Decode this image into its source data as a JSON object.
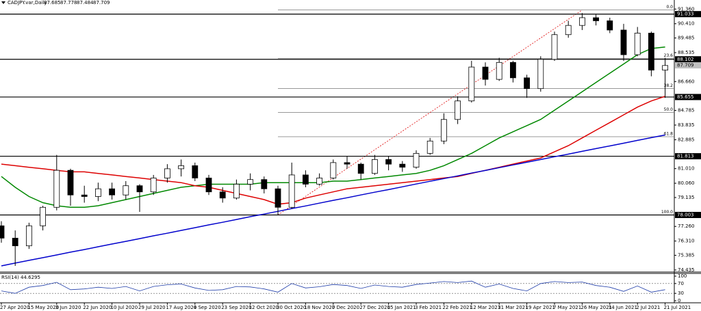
{
  "header": {
    "symbol": "CADJPY.var,Daily",
    "open": 87.685,
    "high": 87.778,
    "low": 87.484,
    "close": 87.709
  },
  "chart_data": [
    {
      "type": "candlestick",
      "categories": [
        "27 Apr 2020",
        null,
        "15 May 2020",
        null,
        "3 Jun 2020",
        null,
        "22 Jun 2020",
        null,
        "10 Jul 2020",
        null,
        "29 Jul 2020",
        null,
        "17 Aug 2020",
        null,
        "4 Sep 2020",
        null,
        "23 Sep 2020",
        null,
        "12 Oct 2020",
        null,
        "30 Oct 2020",
        null,
        "18 Nov 2020",
        null,
        "7 Dec 2020",
        null,
        "27 Dec 2020",
        null,
        "15 Jan 2021",
        null,
        "3 Feb 2021",
        null,
        "22 Feb 2021",
        null,
        "12 Mar 2021",
        null,
        "31 Mar 2021",
        null,
        "19 Apr 2021",
        null,
        "7 May 2021",
        null,
        "26 May 2021",
        null,
        "14 Jun 2021",
        null,
        "2 Jul 2021",
        null,
        "21 Jul 2021"
      ],
      "open": [
        77.3,
        76.5,
        76.0,
        77.3,
        78.5,
        80.9,
        79.3,
        79.2,
        79.7,
        79.3,
        79.9,
        79.5,
        80.4,
        81.0,
        81.2,
        80.4,
        79.5,
        79.1,
        80.0,
        80.3,
        79.7,
        78.5,
        80.6,
        80.0,
        80.4,
        81.4,
        81.3,
        80.7,
        81.6,
        81.3,
        81.1,
        82.0,
        82.8,
        84.2,
        85.4,
        87.6,
        86.8,
        87.9,
        86.9,
        86.2,
        88.1,
        89.7,
        90.3,
        90.8,
        90.6,
        90.0,
        88.4,
        89.8,
        87.4
      ],
      "high": [
        77.6,
        77.0,
        77.5,
        78.6,
        81.9,
        81.0,
        79.9,
        80.1,
        80.1,
        80.2,
        80.0,
        80.6,
        81.3,
        81.6,
        81.4,
        80.6,
        79.8,
        80.3,
        80.7,
        80.5,
        79.9,
        81.4,
        80.9,
        80.7,
        81.6,
        81.8,
        81.4,
        81.9,
        81.8,
        81.5,
        82.2,
        83.0,
        84.6,
        85.7,
        88.0,
        87.9,
        88.2,
        88.0,
        87.1,
        88.3,
        89.9,
        90.6,
        91.1,
        91.0,
        90.8,
        90.4,
        90.2,
        89.9,
        88.2
      ],
      "low": [
        76.2,
        74.7,
        75.8,
        77.0,
        78.3,
        78.6,
        78.8,
        78.9,
        79.0,
        79.0,
        78.2,
        79.3,
        80.1,
        80.5,
        80.2,
        79.3,
        78.8,
        79.0,
        79.6,
        79.4,
        78.0,
        78.4,
        79.8,
        79.9,
        80.3,
        81.0,
        80.3,
        80.6,
        80.9,
        80.8,
        81.0,
        81.9,
        82.6,
        83.9,
        85.3,
        86.4,
        86.7,
        86.6,
        85.6,
        86.0,
        88.0,
        89.5,
        90.0,
        90.3,
        89.8,
        88.0,
        88.3,
        87.0,
        85.6
      ],
      "close": [
        76.5,
        76.0,
        77.3,
        78.5,
        80.9,
        79.3,
        79.2,
        79.7,
        79.3,
        79.9,
        79.5,
        80.4,
        81.0,
        81.2,
        80.4,
        79.5,
        79.1,
        80.0,
        80.3,
        79.7,
        78.5,
        80.6,
        80.0,
        80.4,
        81.4,
        81.3,
        80.7,
        81.6,
        81.3,
        81.1,
        82.0,
        82.8,
        84.2,
        85.4,
        87.6,
        86.8,
        87.9,
        86.9,
        86.2,
        88.1,
        89.7,
        90.3,
        90.8,
        90.6,
        90.0,
        88.4,
        89.8,
        87.4,
        87.7
      ],
      "series": [
        {
          "color": "#008800",
          "values": [
            80.5,
            79.8,
            79.2,
            78.8,
            78.6,
            78.5,
            78.5,
            78.6,
            78.8,
            79.0,
            79.2,
            79.4,
            79.6,
            79.8,
            79.9,
            80.0,
            80.0,
            80.0,
            80.0,
            80.1,
            80.1,
            80.1,
            80.1,
            80.1,
            80.2,
            80.2,
            80.3,
            80.4,
            80.5,
            80.6,
            80.7,
            80.9,
            81.2,
            81.6,
            82.0,
            82.5,
            83.0,
            83.4,
            83.8,
            84.2,
            84.8,
            85.4,
            86.0,
            86.6,
            87.2,
            87.8,
            88.4,
            88.8,
            88.9
          ]
        },
        {
          "color": "#dd0000",
          "values": [
            81.3,
            81.2,
            81.1,
            81.0,
            80.9,
            80.8,
            80.8,
            80.7,
            80.6,
            80.5,
            80.4,
            80.3,
            80.2,
            80.1,
            79.9,
            79.8,
            79.6,
            79.4,
            79.2,
            79.0,
            78.7,
            78.8,
            79.1,
            79.3,
            79.5,
            79.7,
            79.8,
            79.9,
            80.0,
            80.1,
            80.2,
            80.3,
            80.4,
            80.5,
            80.7,
            80.9,
            81.1,
            81.3,
            81.5,
            81.7,
            82.1,
            82.5,
            83.0,
            83.5,
            84.0,
            84.5,
            85.0,
            85.4,
            85.7
          ]
        },
        {
          "color": "#0000cc",
          "values": [
            74.7,
            74.88,
            75.06,
            75.23,
            75.41,
            75.59,
            75.76,
            75.94,
            76.12,
            76.29,
            76.47,
            76.65,
            76.82,
            77.0,
            77.18,
            77.36,
            77.53,
            77.71,
            77.89,
            78.06,
            78.24,
            78.42,
            78.59,
            78.77,
            78.95,
            79.12,
            79.3,
            79.48,
            79.65,
            79.83,
            80.01,
            80.19,
            80.36,
            80.54,
            80.72,
            80.89,
            81.07,
            81.25,
            81.42,
            81.6,
            81.78,
            81.95,
            82.13,
            82.31,
            82.48,
            82.66,
            82.84,
            83.02,
            83.19
          ]
        }
      ],
      "price_lines": [
        91.033,
        88.102,
        85.655,
        81.813,
        78.003
      ],
      "fib_levels": [
        {
          "value": 91.3,
          "label": "0.0"
        },
        {
          "value": 88.16,
          "label": "23.6"
        },
        {
          "value": 86.2,
          "label": "38.2"
        },
        {
          "value": 84.65,
          "label": "50.0"
        },
        {
          "value": 83.08,
          "label": "61.8"
        },
        {
          "value": 78.0,
          "label": "100.0"
        }
      ],
      "ylim": [
        74.3,
        91.55
      ],
      "yticks": [
        {
          "value": 91.36,
          "label": "91.360"
        },
        {
          "value": 90.41,
          "label": "90.410"
        },
        89.485,
        88.535,
        {
          "value": 86.66,
          "label": "86.660"
        },
        84.785,
        83.835,
        82.885,
        {
          "value": 81.01,
          "label": "81.010"
        },
        {
          "value": 80.06,
          "label": "80.060"
        },
        79.135,
        {
          "value": 77.26,
          "label": "77.260"
        },
        {
          "value": 76.31,
          "label": "76.310"
        },
        75.385,
        74.435
      ]
    },
    {
      "type": "line",
      "title": "RSI(14)",
      "last": 44.6295,
      "color": "#1e3ca8",
      "values": [
        40,
        30,
        55,
        62,
        75,
        45,
        48,
        55,
        50,
        58,
        40,
        58,
        65,
        68,
        52,
        42,
        45,
        58,
        56,
        48,
        35,
        70,
        52,
        57,
        66,
        62,
        50,
        64,
        58,
        55,
        66,
        72,
        78,
        74,
        80,
        55,
        68,
        50,
        40,
        70,
        78,
        74,
        76,
        62,
        55,
        38,
        60,
        35,
        45
      ],
      "levels": [
        70,
        30
      ],
      "ylim": [
        0,
        100
      ],
      "yticks": [
        100,
        70,
        30,
        0
      ]
    }
  ]
}
